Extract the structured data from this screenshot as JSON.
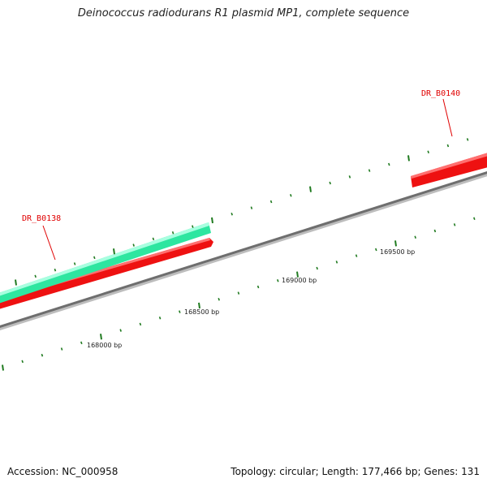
{
  "title": "Deinococcus radiodurans R1 plasmid MP1, complete sequence",
  "footer": {
    "accession": "Accession: NC_000958",
    "topology": "Topology: circular; Length: 177,466 bp; Genes: 131"
  },
  "genes": [
    {
      "id": "dr_b0138",
      "label": "DR_B0138"
    },
    {
      "id": "dr_b0140",
      "label": "DR_B0140"
    }
  ],
  "scale_labels": [
    "168000 bp",
    "168500 bp",
    "169000 bp",
    "169500 bp"
  ],
  "colors": {
    "backbone": "#7a7a7a",
    "forward_gene": "#2ee6a0",
    "reverse_gene": "#ee1111",
    "tick": "#1f7a1f",
    "label": "#e00000"
  }
}
